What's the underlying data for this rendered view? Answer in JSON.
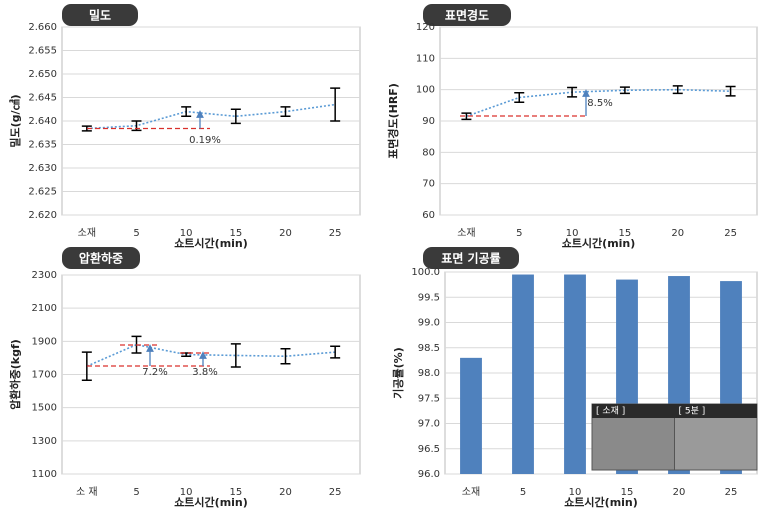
{
  "chart_data": [
    {
      "type": "line",
      "title": "밀도",
      "x_label": "쇼트시간(min)",
      "y_label": "밀도(g/㎤)",
      "categories": [
        "소재",
        "5",
        "10",
        "15",
        "20",
        "25"
      ],
      "values": [
        2.6384,
        2.639,
        2.642,
        2.641,
        2.642,
        2.6435
      ],
      "errors": [
        0.0005,
        0.001,
        0.001,
        0.0015,
        0.001,
        0.0035
      ],
      "color": "#5b9bd5",
      "error_color": "#000000",
      "ylim": [
        2.62,
        2.66
      ],
      "yticks": [
        {
          "value": 2.62,
          "label": "2.620"
        },
        {
          "value": 2.625,
          "label": "2.625"
        },
        {
          "value": 2.63,
          "label": "2.630"
        },
        {
          "value": 2.635,
          "label": "2.635"
        },
        {
          "value": 2.64,
          "label": "2.640"
        },
        {
          "value": 2.645,
          "label": "2.645"
        },
        {
          "value": 2.65,
          "label": "2.650"
        },
        {
          "value": 2.655,
          "label": "2.655"
        },
        {
          "value": 2.66,
          "label": "2.660"
        }
      ],
      "grid": true,
      "annotations": [
        "0.19%"
      ]
    },
    {
      "type": "line",
      "title": "표면경도",
      "x_label": "쇼트시간(min)",
      "y_label": "표면경도(HRF)",
      "categories": [
        "소재",
        "5",
        "10",
        "15",
        "20",
        "25"
      ],
      "values": [
        91.5,
        97.5,
        99.2,
        99.8,
        100,
        99.5
      ],
      "errors": [
        1,
        1.5,
        1.5,
        1,
        1.2,
        1.5
      ],
      "color": "#5b9bd5",
      "error_color": "#000000",
      "ylim": [
        60,
        120
      ],
      "yticks": [
        60,
        70,
        80,
        90,
        100,
        110,
        120
      ],
      "grid": true,
      "annotations": [
        "8.5%"
      ]
    },
    {
      "type": "line",
      "title": "압환하중",
      "x_label": "쇼트시간(min)",
      "y_label": "압환하중(kgf)",
      "categories": [
        "소 재",
        "5",
        "10",
        "15",
        "20",
        "25"
      ],
      "values": [
        1750,
        1880,
        1820,
        1815,
        1810,
        1835
      ],
      "errors": [
        85,
        50,
        10,
        70,
        45,
        35
      ],
      "color": "#5b9bd5",
      "error_color": "#000000",
      "ylim": [
        1100,
        2300
      ],
      "yticks": [
        1100,
        1300,
        1500,
        1700,
        1900,
        2100,
        2300
      ],
      "grid": true,
      "annotations": [
        "7.2%",
        "3.8%"
      ]
    },
    {
      "type": "bar",
      "title": "표면 기공률",
      "x_label": "쇼트시간(min)",
      "y_label": "기공률(%)",
      "categories": [
        "소재",
        "5",
        "10",
        "15",
        "20",
        "25"
      ],
      "values": [
        98.3,
        99.95,
        99.95,
        99.85,
        99.92,
        99.82
      ],
      "color": "#4f81bd",
      "ylim": [
        96,
        100
      ],
      "yticks": [
        {
          "value": 96,
          "label": "96.0"
        },
        96.5,
        {
          "value": 97,
          "label": "97.0"
        },
        97.5,
        {
          "value": 98,
          "label": "98.0"
        },
        98.5,
        {
          "value": 99,
          "label": "99.0"
        },
        99.5,
        {
          "value": 100,
          "label": "100.0"
        }
      ],
      "grid": true,
      "inset_labels": [
        "[ 소재 ]",
        "[ 5분 ]"
      ]
    }
  ]
}
